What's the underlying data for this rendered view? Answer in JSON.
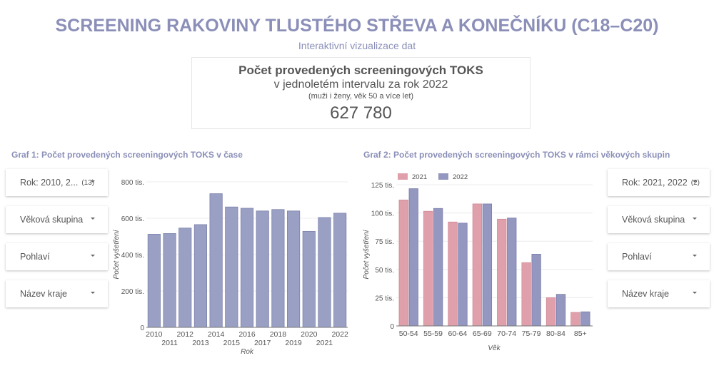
{
  "header": {
    "title": "SCREENING RAKOVINY TLUSTÉHO STŘEVA A KONEČNÍKU (C18–C20)",
    "subtitle": "Interaktivní vizualizace dat"
  },
  "kpi": {
    "line1": "Počet provedených screeningových TOKS",
    "line2": "v jednoletém intervalu za rok 2022",
    "line3": "(muži i ženy, věk 50 a více let)",
    "value": "627 780"
  },
  "graf1": {
    "title": "Graf 1: Počet provedených screeningových TOKS v čase",
    "filters": [
      {
        "label": "Rok: 2010, 2...",
        "count": "(13)"
      },
      {
        "label": "Věková skupina",
        "count": ""
      },
      {
        "label": "Pohlaví",
        "count": ""
      },
      {
        "label": "Název kraje",
        "count": ""
      }
    ]
  },
  "graf2": {
    "title": "Graf 2: Počet provedených screeningových TOKS v rámci věkových skupin",
    "filters": [
      {
        "label": "Rok: 2021, 2022",
        "count": "(2)"
      },
      {
        "label": "Věková skupina",
        "count": ""
      },
      {
        "label": "Pohlaví",
        "count": ""
      },
      {
        "label": "Název kraje",
        "count": ""
      }
    ]
  },
  "chart_data": [
    {
      "type": "bar",
      "xlabel": "Rok",
      "ylabel": "Počet vyšetření",
      "ylim": [
        0,
        800000
      ],
      "yticks": [
        "0",
        "200 tis.",
        "400 tis.",
        "600 tis.",
        "800 tis."
      ],
      "categories": [
        "2010",
        "2011",
        "2012",
        "2013",
        "2014",
        "2015",
        "2016",
        "2017",
        "2018",
        "2019",
        "2020",
        "2021",
        "2022"
      ],
      "values": [
        512000,
        516000,
        546000,
        565000,
        735000,
        662000,
        655000,
        640000,
        648000,
        640000,
        528000,
        604000,
        627780
      ],
      "color": "#9aa0c4",
      "grid": true
    },
    {
      "type": "bar",
      "xlabel": "Věk",
      "ylabel": "Počet vyšetření",
      "ylim": [
        0,
        125000
      ],
      "yticks": [
        "0",
        "25 tis.",
        "50 tis.",
        "75 tis.",
        "100 tis.",
        "125 tis."
      ],
      "categories": [
        "50-54",
        "55-59",
        "60-64",
        "65-69",
        "70-74",
        "75-79",
        "80-84",
        "85+"
      ],
      "series": [
        {
          "name": "2021",
          "color": "#e0a0ab",
          "values": [
            111500,
            101500,
            92000,
            108000,
            94500,
            56000,
            25000,
            12000
          ]
        },
        {
          "name": "2022",
          "color": "#9497c0",
          "values": [
            121500,
            104000,
            91000,
            108000,
            95500,
            63500,
            28000,
            12500
          ]
        }
      ],
      "legend": "top-left",
      "grid": true
    }
  ]
}
